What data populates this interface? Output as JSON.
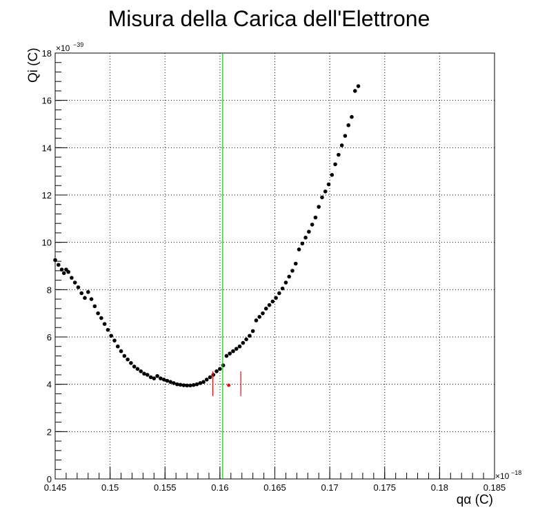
{
  "chart_data": {
    "type": "scatter",
    "title": "Misura della Carica dell'Elettrone",
    "xlabel": "qα (C)",
    "ylabel": "Qi (C)",
    "x_multiplier_label": "×10",
    "x_multiplier_exp": "−18",
    "y_multiplier_label": "×10",
    "y_multiplier_exp": "−39",
    "xlim": [
      0.145,
      0.185
    ],
    "ylim": [
      0,
      18
    ],
    "x_ticks": [
      0.145,
      0.15,
      0.155,
      0.16,
      0.165,
      0.17,
      0.175,
      0.18,
      0.185
    ],
    "x_tick_labels": [
      "0.145",
      "0.15",
      "0.155",
      "0.16",
      "0.165",
      "0.17",
      "0.175",
      "0.18",
      "0.185"
    ],
    "y_ticks": [
      0,
      2,
      4,
      6,
      8,
      10,
      12,
      14,
      16,
      18
    ],
    "y_tick_labels": [
      "0",
      "2",
      "4",
      "6",
      "8",
      "10",
      "12",
      "14",
      "16",
      "18"
    ],
    "grid": true,
    "colors": {
      "points": "#000000",
      "minimum_line": "#00cc00",
      "error_bars": "#ff0000",
      "minimum_point": "#ff0000"
    },
    "minimum": {
      "x": 0.1608,
      "y": 3.96
    },
    "vertical_line_x": 0.16025,
    "error_bars": [
      {
        "x": 0.15935,
        "y_low": 3.5,
        "y_high": 4.55
      },
      {
        "x": 0.1619,
        "y_low": 3.5,
        "y_high": 4.55
      }
    ],
    "series": [
      {
        "points": [
          [
            0.145,
            9.25
          ],
          [
            0.1453,
            9.05
          ],
          [
            0.1456,
            8.85
          ],
          [
            0.1458,
            8.7
          ],
          [
            0.146,
            8.85
          ],
          [
            0.1462,
            8.75
          ],
          [
            0.1465,
            8.5
          ],
          [
            0.1468,
            8.3
          ],
          [
            0.1471,
            8.1
          ],
          [
            0.1474,
            7.85
          ],
          [
            0.1477,
            7.65
          ],
          [
            0.148,
            7.9
          ],
          [
            0.1483,
            7.6
          ],
          [
            0.1486,
            7.3
          ],
          [
            0.1489,
            7.0
          ],
          [
            0.1492,
            6.8
          ],
          [
            0.1495,
            6.55
          ],
          [
            0.1498,
            6.3
          ],
          [
            0.1501,
            6.05
          ],
          [
            0.1504,
            5.85
          ],
          [
            0.1507,
            5.6
          ],
          [
            0.151,
            5.4
          ],
          [
            0.1513,
            5.2
          ],
          [
            0.1516,
            5.05
          ],
          [
            0.1519,
            4.9
          ],
          [
            0.1522,
            4.75
          ],
          [
            0.1525,
            4.65
          ],
          [
            0.1528,
            4.55
          ],
          [
            0.1531,
            4.45
          ],
          [
            0.1534,
            4.4
          ],
          [
            0.1537,
            4.3
          ],
          [
            0.154,
            4.25
          ],
          [
            0.1543,
            4.35
          ],
          [
            0.1546,
            4.25
          ],
          [
            0.1549,
            4.2
          ],
          [
            0.1552,
            4.15
          ],
          [
            0.1555,
            4.1
          ],
          [
            0.1558,
            4.05
          ],
          [
            0.1561,
            4.0
          ],
          [
            0.1564,
            3.98
          ],
          [
            0.1567,
            3.96
          ],
          [
            0.157,
            3.95
          ],
          [
            0.1573,
            3.95
          ],
          [
            0.1576,
            3.97
          ],
          [
            0.1579,
            4.0
          ],
          [
            0.1582,
            4.05
          ],
          [
            0.1585,
            4.1
          ],
          [
            0.1588,
            4.2
          ],
          [
            0.1591,
            4.3
          ],
          [
            0.1594,
            4.4
          ],
          [
            0.1597,
            4.55
          ],
          [
            0.16,
            4.65
          ],
          [
            0.1603,
            4.8
          ],
          [
            0.1606,
            5.2
          ],
          [
            0.1609,
            5.3
          ],
          [
            0.1612,
            5.4
          ],
          [
            0.1615,
            5.5
          ],
          [
            0.1618,
            5.6
          ],
          [
            0.1621,
            5.75
          ],
          [
            0.1624,
            5.9
          ],
          [
            0.1627,
            6.05
          ],
          [
            0.163,
            6.25
          ],
          [
            0.1633,
            6.7
          ],
          [
            0.1636,
            6.85
          ],
          [
            0.1639,
            7.0
          ],
          [
            0.1642,
            7.2
          ],
          [
            0.1645,
            7.35
          ],
          [
            0.1648,
            7.5
          ],
          [
            0.1651,
            7.65
          ],
          [
            0.1654,
            7.85
          ],
          [
            0.1657,
            8.05
          ],
          [
            0.166,
            8.3
          ],
          [
            0.1663,
            8.55
          ],
          [
            0.1666,
            8.8
          ],
          [
            0.1669,
            9.1
          ],
          [
            0.1672,
            9.7
          ],
          [
            0.1675,
            9.95
          ],
          [
            0.1678,
            10.2
          ],
          [
            0.1681,
            10.45
          ],
          [
            0.1684,
            10.75
          ],
          [
            0.1687,
            11.05
          ],
          [
            0.169,
            11.5
          ],
          [
            0.1693,
            11.9
          ],
          [
            0.1696,
            12.15
          ],
          [
            0.1699,
            12.45
          ],
          [
            0.1702,
            12.85
          ],
          [
            0.1705,
            13.3
          ],
          [
            0.1708,
            13.7
          ],
          [
            0.1711,
            14.1
          ],
          [
            0.1714,
            14.5
          ],
          [
            0.1717,
            14.95
          ],
          [
            0.172,
            15.3
          ],
          [
            0.1723,
            16.4
          ],
          [
            0.1726,
            16.6
          ]
        ]
      }
    ]
  }
}
